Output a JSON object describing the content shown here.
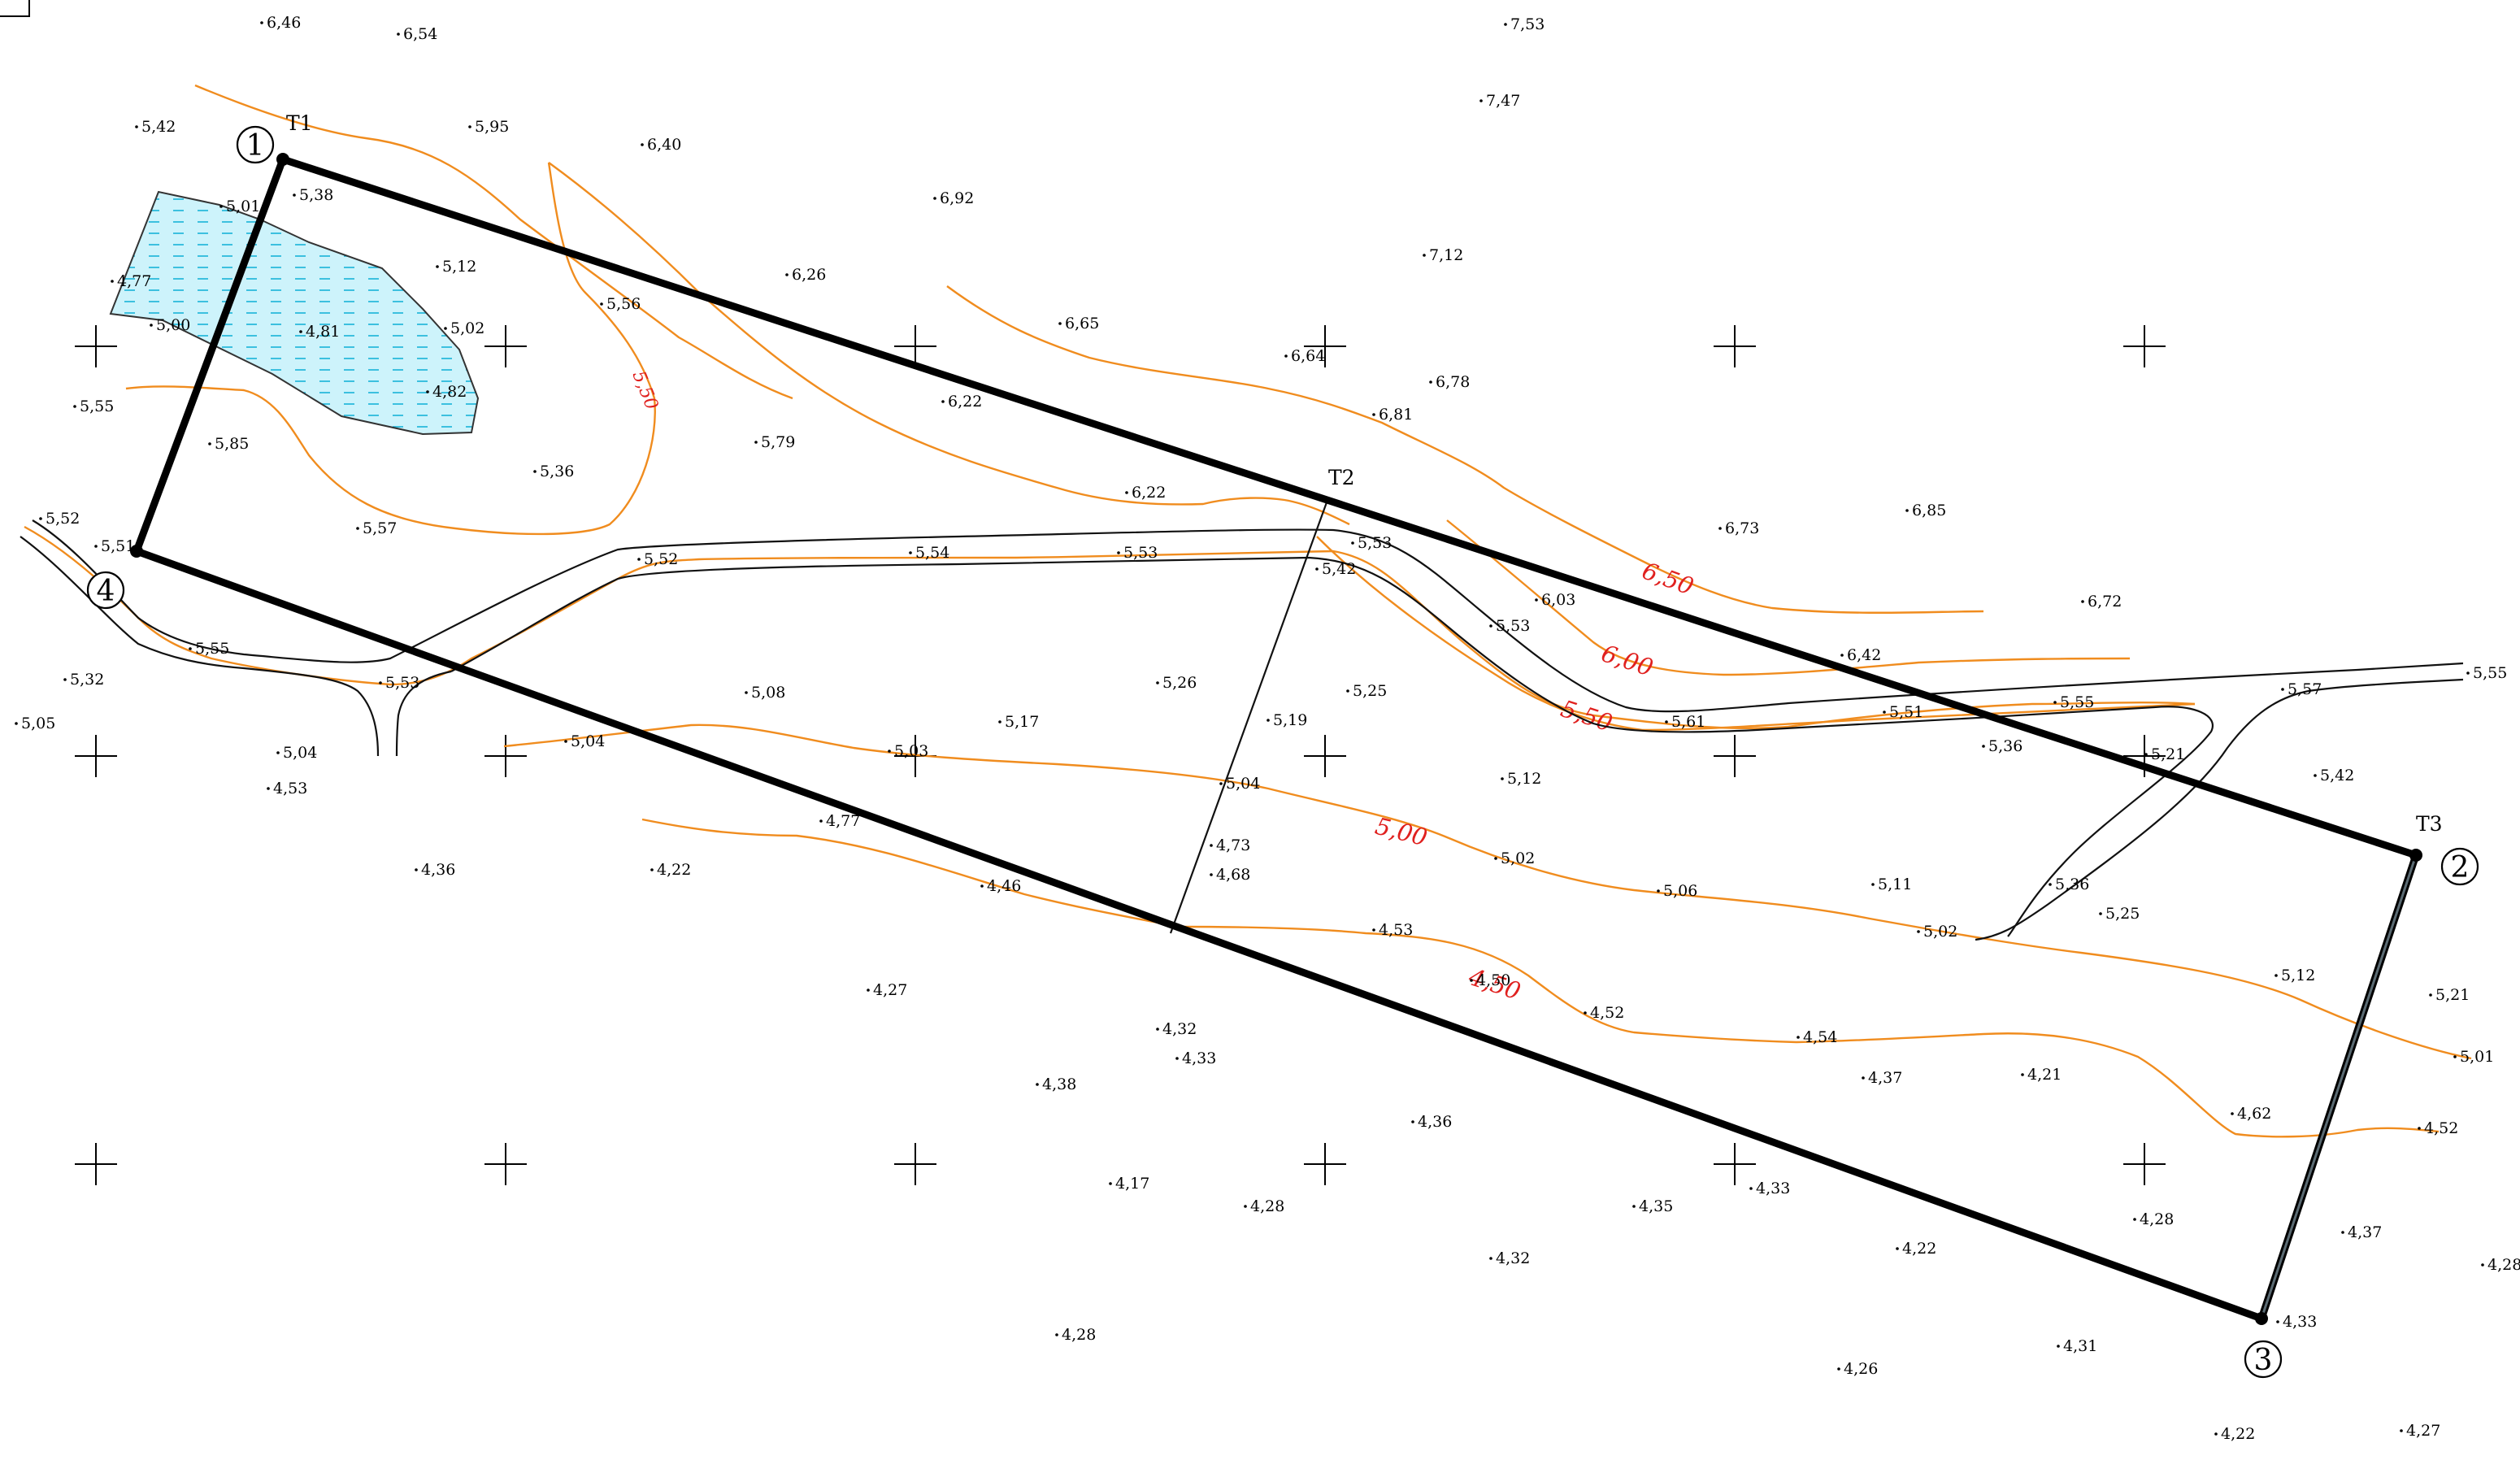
{
  "map": {
    "stations": [
      "T1",
      "T2",
      "T3"
    ],
    "corners": [
      "1",
      "2",
      "3",
      "4"
    ],
    "contour_labels": [
      "6,50",
      "6,00",
      "5,50",
      "5,00",
      "4,50",
      "5,50"
    ],
    "elevations": [
      "6,46",
      "6,54",
      "7,53",
      "5,42",
      "5,95",
      "6,40",
      "7,47",
      "5,38",
      "5,01",
      "6,92",
      "5,12",
      "7,12",
      "4,77",
      "6,26",
      "5,56",
      "5,00",
      "4,81",
      "5,02",
      "6,65",
      "6,64",
      "6,78",
      "4,82",
      "5,55",
      "6,22",
      "6,81",
      "5,85",
      "5,79",
      "5,36",
      "6,22",
      "5,57",
      "6,73",
      "6,85",
      "5,52",
      "5,51",
      "5,52",
      "5,54",
      "5,53",
      "5,53",
      "5,42",
      "6,03",
      "6,72",
      "5,53",
      "6,42",
      "5,55",
      "5,32",
      "5,53",
      "5,08",
      "5,26",
      "5,25",
      "5,05",
      "5,17",
      "5,19",
      "5,61",
      "5,51",
      "5,55",
      "5,57",
      "5,55",
      "5,04",
      "5,04",
      "5,03",
      "5,36",
      "5,21",
      "5,12",
      "4,53",
      "5,04",
      "5,42",
      "4,77",
      "5,00",
      "4,73",
      "5,02",
      "4,36",
      "4,22",
      "4,68",
      "4,46",
      "5,06",
      "5,11",
      "5,36",
      "5,25",
      "5,02",
      "4,53",
      "5,12",
      "4,27",
      "5,21",
      "4,50",
      "4,32",
      "4,52",
      "4,33",
      "4,54",
      "4,37",
      "4,21",
      "5,01",
      "4,38",
      "4,62",
      "4,52",
      "4,36",
      "4,17",
      "4,28",
      "4,35",
      "4,33",
      "4,28",
      "4,37",
      "4,32",
      "4,22",
      "4,28",
      "4,33",
      "4,28",
      "4,31",
      "4,26",
      "4,22",
      "4,27"
    ]
  },
  "colors": {
    "contour": "#f08c1e",
    "contour_label": "#e0201e",
    "water": "#cdf3fb",
    "water_hatch": "#17b4d8",
    "plot_boundary": "#000000"
  },
  "icons": [
    "grid-cross-icon",
    "survey-point-icon",
    "water-hatch"
  ]
}
